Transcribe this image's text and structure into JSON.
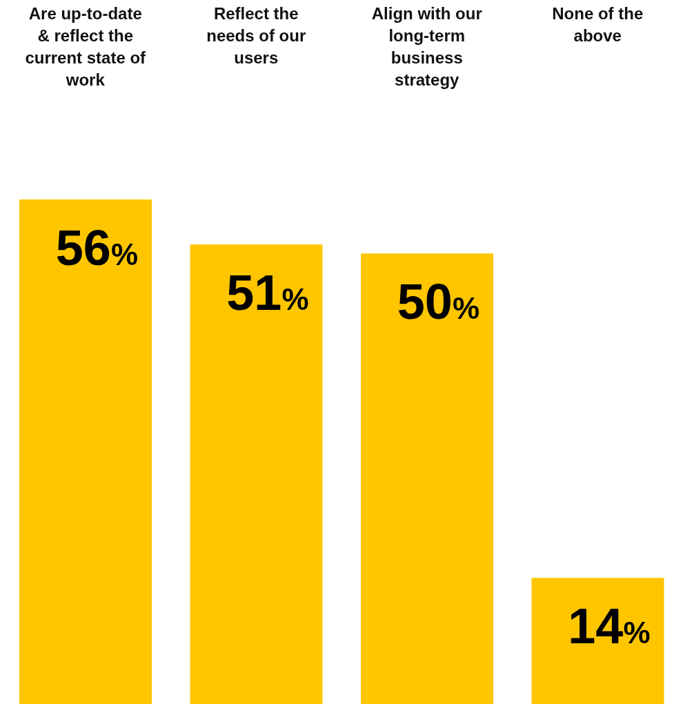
{
  "chart_data": {
    "type": "bar",
    "categories": [
      "Are up-to-date & reflect the current state of work",
      "Reflect the needs of our users",
      "Align with our long-term business strategy",
      "None of the above"
    ],
    "values": [
      56,
      51,
      50,
      14
    ],
    "color": "#ffc600",
    "value_labels": [
      "56%",
      "51%",
      "50%",
      "14%"
    ]
  }
}
